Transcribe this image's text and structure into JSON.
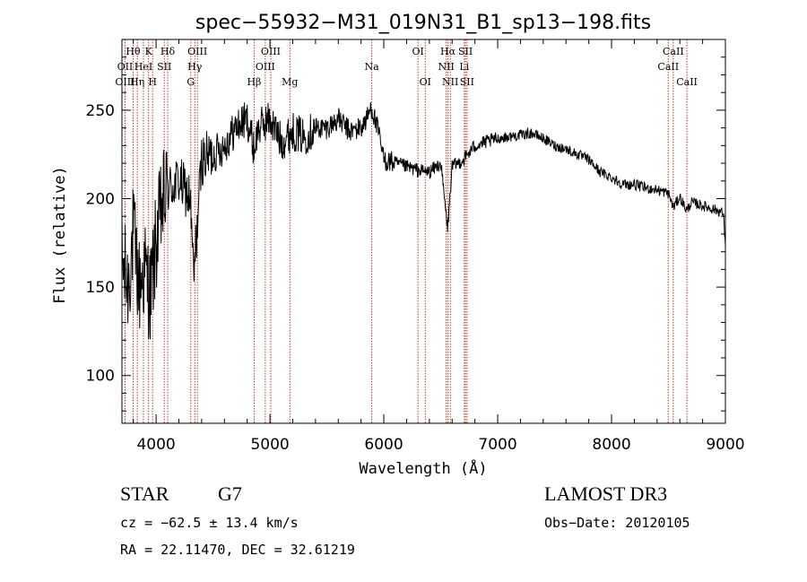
{
  "chart_data": {
    "type": "line",
    "title": "spec−55932−M31_019N31_B1_sp13−198.fits",
    "xlabel": "Wavelength (Å)",
    "ylabel": "Flux (relative)",
    "xlim": [
      3700,
      9000
    ],
    "ylim": [
      73,
      290
    ],
    "x_ticks": [
      4000,
      5000,
      6000,
      7000,
      8000,
      9000
    ],
    "y_ticks": [
      100,
      150,
      200,
      250
    ],
    "spectrum_anchors": {
      "x": [
        3700,
        3750,
        3800,
        3850,
        3900,
        3950,
        4000,
        4050,
        4100,
        4200,
        4300,
        4330,
        4400,
        4500,
        4600,
        4700,
        4800,
        4860,
        4900,
        5000,
        5100,
        5200,
        5300,
        5400,
        5500,
        5600,
        5700,
        5800,
        5850,
        5890,
        5950,
        6000,
        6100,
        6200,
        6300,
        6400,
        6500,
        6560,
        6600,
        6700,
        6800,
        6900,
        7000,
        7100,
        7200,
        7300,
        7400,
        7500,
        7600,
        7700,
        7800,
        7900,
        8000,
        8100,
        8200,
        8300,
        8400,
        8500,
        8542,
        8600,
        8662,
        8700,
        8800,
        8900,
        8980,
        9000
      ],
      "y": [
        165,
        150,
        180,
        150,
        160,
        145,
        175,
        195,
        205,
        210,
        200,
        155,
        222,
        225,
        230,
        240,
        245,
        228,
        240,
        245,
        232,
        238,
        235,
        240,
        240,
        245,
        238,
        240,
        245,
        252,
        238,
        222,
        220,
        218,
        216,
        215,
        220,
        183,
        218,
        222,
        230,
        232,
        234,
        235,
        236,
        237,
        234,
        230,
        228,
        225,
        222,
        215,
        212,
        208,
        208,
        206,
        205,
        203,
        195,
        201,
        193,
        198,
        196,
        194,
        192,
        175
      ]
    },
    "spectral_lines": [
      {
        "label": "Hθ",
        "wavelength": 3798,
        "row": 1
      },
      {
        "label": "OII",
        "wavelength": 3727,
        "row": 2
      },
      {
        "label": "OIII",
        "wavelength": 3727,
        "row": 3
      },
      {
        "label": "Hη",
        "wavelength": 3835,
        "row": 3
      },
      {
        "label": "HeI",
        "wavelength": 3889,
        "row": 2
      },
      {
        "label": "K",
        "wavelength": 3934,
        "row": 1
      },
      {
        "label": "H",
        "wavelength": 3969,
        "row": 3
      },
      {
        "label": "SII",
        "wavelength": 4072,
        "row": 2
      },
      {
        "label": "Hδ",
        "wavelength": 4102,
        "row": 1
      },
      {
        "label": "OIII",
        "wavelength": 4363,
        "row": 1
      },
      {
        "label": "Hγ",
        "wavelength": 4340,
        "row": 2
      },
      {
        "label": "G",
        "wavelength": 4305,
        "row": 3
      },
      {
        "label": "Hβ",
        "wavelength": 4861,
        "row": 3
      },
      {
        "label": "OIII",
        "wavelength": 5007,
        "row": 1
      },
      {
        "label": "OIII",
        "wavelength": 4959,
        "row": 2
      },
      {
        "label": "Mg",
        "wavelength": 5175,
        "row": 3
      },
      {
        "label": "Na",
        "wavelength": 5894,
        "row": 2
      },
      {
        "label": "OI",
        "wavelength": 6300,
        "row": 1
      },
      {
        "label": "OI",
        "wavelength": 6364,
        "row": 3
      },
      {
        "label": "Hα",
        "wavelength": 6563,
        "row": 1
      },
      {
        "label": "NII",
        "wavelength": 6548,
        "row": 2
      },
      {
        "label": "NII",
        "wavelength": 6584,
        "row": 3
      },
      {
        "label": "SII",
        "wavelength": 6717,
        "row": 1
      },
      {
        "label": "Li",
        "wavelength": 6707,
        "row": 2
      },
      {
        "label": "SII",
        "wavelength": 6731,
        "row": 3
      },
      {
        "label": "CaII",
        "wavelength": 8542,
        "row": 1
      },
      {
        "label": "CaII",
        "wavelength": 8498,
        "row": 2
      },
      {
        "label": "CaII",
        "wavelength": 8662,
        "row": 3
      }
    ]
  },
  "info": {
    "class_label": "STAR",
    "subclass": "G7",
    "survey": "LAMOST DR3",
    "cz": "cz = −62.5 ± 13.4 km/s",
    "obs_date": "Obs−Date: 20120105",
    "coords": "RA =  22.11470, DEC =  32.61219"
  },
  "colors": {
    "line_marker": "#c0392b",
    "spectrum": "#000000"
  }
}
